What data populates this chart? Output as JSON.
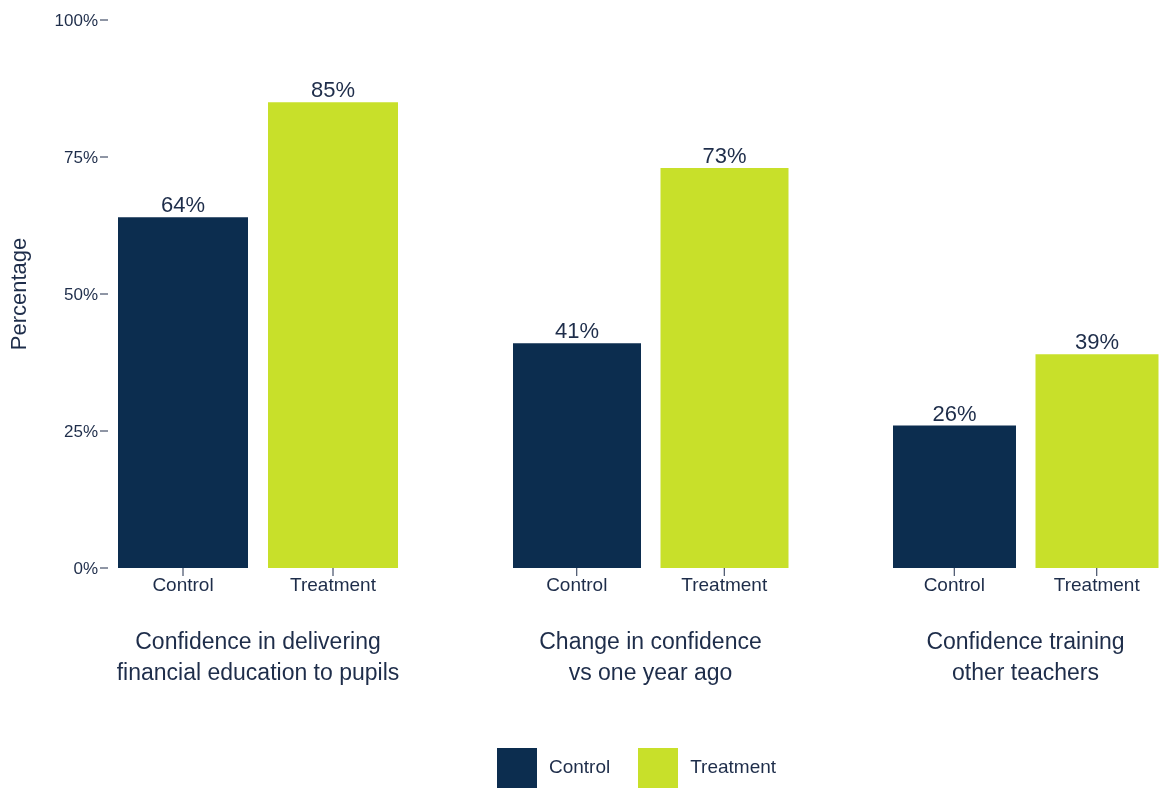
{
  "chart_data": [
    {
      "type": "bar",
      "stacked": true,
      "categories": [
        "Control",
        "Treatment"
      ],
      "xlabel": "Confidence in delivering financial education to pupils",
      "ylabel": "Percentage",
      "ylim": [
        0,
        100
      ],
      "yticks": [
        {
          "value": 0,
          "label": "0%"
        },
        {
          "value": 25,
          "label": "25%"
        },
        {
          "value": 50,
          "label": "50%"
        },
        {
          "value": 75,
          "label": "75%"
        },
        {
          "value": 100,
          "label": "100%"
        }
      ],
      "series": [
        {
          "color": "#0c2d4f",
          "values": [
            64,
            null
          ],
          "value_labels": [
            "64%",
            null
          ]
        },
        {
          "color": "#c8e02a",
          "values": [
            null,
            85
          ],
          "value_labels": [
            null,
            "85%"
          ]
        }
      ]
    },
    {
      "type": "bar",
      "stacked": true,
      "categories": [
        "Control",
        "Treatment"
      ],
      "xlabel": "Change in confidence vs one year ago",
      "ylim": [
        0,
        100
      ],
      "tick_labels": "x",
      "legend": "bottom",
      "series": [
        {
          "name": "Control",
          "color": "#0c2d4f",
          "values": [
            41,
            null
          ],
          "value_labels": [
            "41%",
            null
          ]
        },
        {
          "name": "Treatment",
          "color": "#c8e02a",
          "values": [
            null,
            73
          ],
          "value_labels": [
            null,
            "73%"
          ]
        }
      ]
    },
    {
      "type": "bar",
      "stacked": true,
      "categories": [
        "Control",
        "Treatment"
      ],
      "xlabel": "Confidence training other teachers",
      "ylim": [
        0,
        100
      ],
      "tick_labels": "x",
      "series": [
        {
          "color": "#0c2d4f",
          "values": [
            26,
            null
          ],
          "value_labels": [
            "26%",
            null
          ]
        },
        {
          "color": "#c8e02a",
          "values": [
            null,
            39
          ],
          "value_labels": [
            null,
            "39%"
          ]
        }
      ]
    }
  ]
}
